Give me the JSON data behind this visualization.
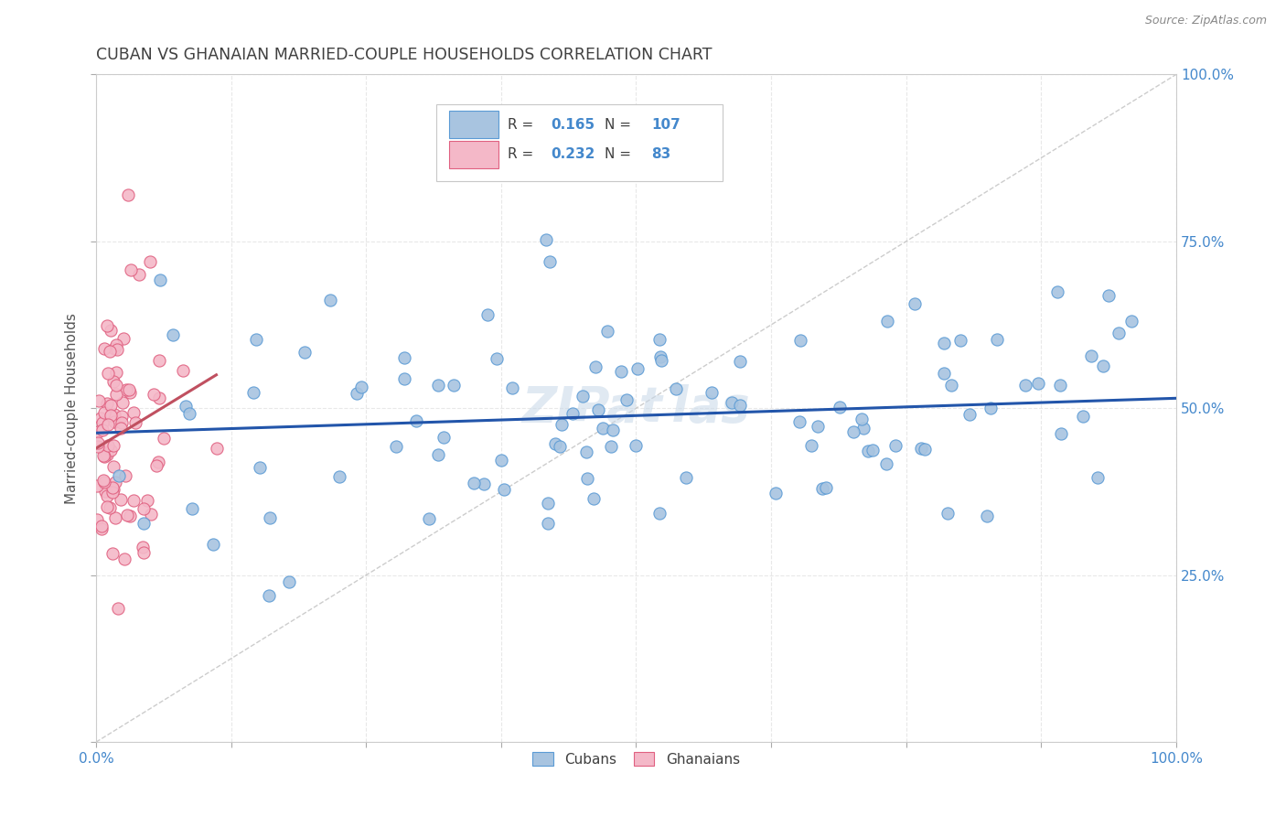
{
  "title": "CUBAN VS GHANAIAN MARRIED-COUPLE HOUSEHOLDS CORRELATION CHART",
  "source": "Source: ZipAtlas.com",
  "ylabel": "Married-couple Households",
  "xlim": [
    0,
    1
  ],
  "ylim": [
    0,
    1
  ],
  "yticks": [
    0,
    0.25,
    0.5,
    0.75,
    1.0
  ],
  "xticks": [
    0,
    0.125,
    0.25,
    0.375,
    0.5,
    0.625,
    0.75,
    0.875,
    1.0
  ],
  "cubans_R": 0.165,
  "cubans_N": 107,
  "ghanaians_R": 0.232,
  "ghanaians_N": 83,
  "cuban_color": "#a8c4e0",
  "cuban_edge_color": "#5b9bd5",
  "ghanaian_color": "#f4b8c8",
  "ghanaian_edge_color": "#e06080",
  "trend_cuban_color": "#2255aa",
  "trend_ghanaian_color": "#c05060",
  "diagonal_color": "#c0c0c0",
  "watermark_color": "#c8d8e8",
  "background_color": "#ffffff",
  "grid_color": "#e8e8e8",
  "title_color": "#404040",
  "axis_label_color": "#4488cc",
  "legend_R_color": "#404040",
  "legend_N_color": "#4488cc"
}
